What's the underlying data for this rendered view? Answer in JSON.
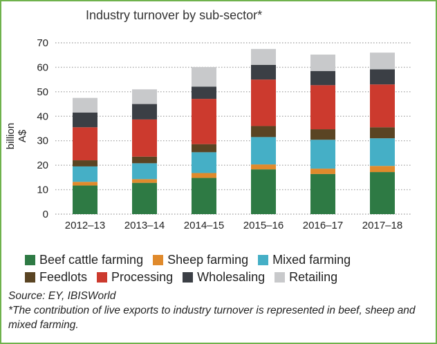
{
  "chart_data": {
    "type": "bar",
    "stacked": true,
    "title": "Industry turnover by sub-sector*",
    "xlabel": "",
    "ylabel": "billion A$",
    "ylim": [
      0,
      70
    ],
    "yticks": [
      0,
      10,
      20,
      30,
      40,
      50,
      60,
      70
    ],
    "grid": true,
    "legend_position": "bottom",
    "categories": [
      "2012–13",
      "2013–14",
      "2014–15",
      "2015–16",
      "2016–17",
      "2017–18"
    ],
    "series": [
      {
        "name": "Beef cattle farming",
        "color": "#2e7a44",
        "values": [
          11.7,
          12.8,
          14.8,
          18.3,
          16.4,
          17.2
        ]
      },
      {
        "name": "Sheep farming",
        "color": "#e08a2c",
        "values": [
          1.5,
          1.5,
          2.0,
          2.0,
          2.2,
          2.5
        ]
      },
      {
        "name": "Mixed farming",
        "color": "#45afc6",
        "values": [
          6.3,
          6.5,
          8.5,
          11.2,
          11.8,
          11.3
        ]
      },
      {
        "name": "Feedlots",
        "color": "#5a4423",
        "values": [
          2.5,
          2.7,
          3.3,
          4.5,
          4.3,
          4.5
        ]
      },
      {
        "name": "Processing",
        "color": "#cc3a2e",
        "values": [
          13.5,
          15.2,
          18.5,
          19.0,
          18.0,
          17.5
        ]
      },
      {
        "name": "Wholesaling",
        "color": "#3b3f45",
        "values": [
          6.0,
          6.3,
          5.0,
          6.0,
          5.8,
          6.2
        ]
      },
      {
        "name": "Retailing",
        "color": "#c8c9cb",
        "values": [
          6.0,
          6.0,
          8.0,
          6.5,
          6.7,
          6.8
        ]
      }
    ],
    "colors": {
      "gridline": "#aaaaaa",
      "axis_text": "#222222",
      "frame": "#6fb24c"
    }
  },
  "footnote": {
    "source": "Source: EY, IBISWorld",
    "note": "*The contribution of live exports to industry turnover is represented in beef, sheep and mixed farming."
  }
}
